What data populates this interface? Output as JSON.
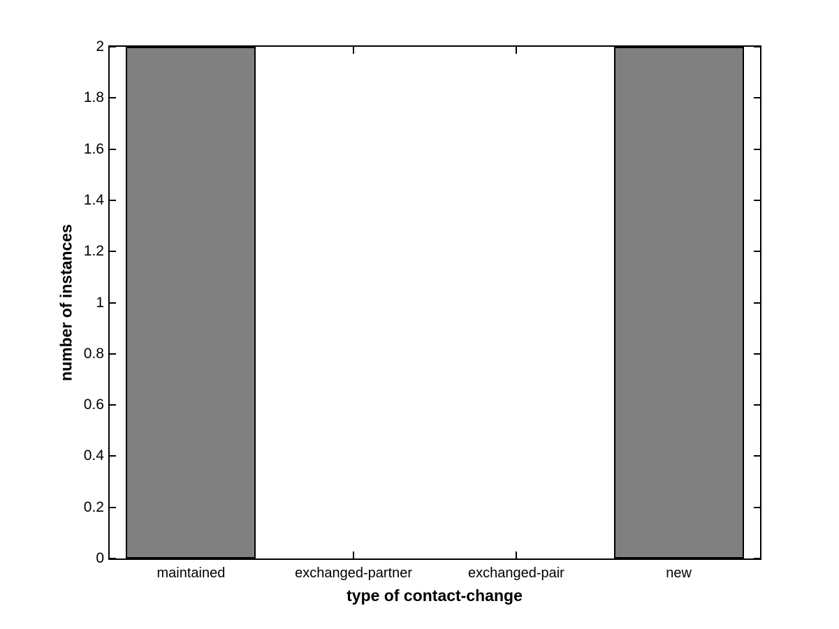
{
  "chart_data": {
    "type": "bar",
    "categories": [
      "maintained",
      "exchanged-partner",
      "exchanged-pair",
      "new"
    ],
    "values": [
      2,
      0,
      0,
      2
    ],
    "title": "",
    "xlabel": "type of contact-change",
    "ylabel": "number of instances",
    "ylim": [
      0,
      2
    ],
    "yticks": [
      0,
      0.2,
      0.4,
      0.6,
      0.8,
      1,
      1.2,
      1.4,
      1.6,
      1.8,
      2
    ],
    "ytick_labels": [
      "0",
      "0.2",
      "0.4",
      "0.6",
      "0.8",
      "1",
      "1.2",
      "1.4",
      "1.6",
      "1.8",
      "2"
    ],
    "grid": false,
    "legend": null,
    "bar_width_fraction": 0.8,
    "colors": {
      "bar_fill": "#808080",
      "bar_edge": "#000000",
      "axis": "#000000",
      "background": "#ffffff",
      "text": "#000000"
    }
  }
}
